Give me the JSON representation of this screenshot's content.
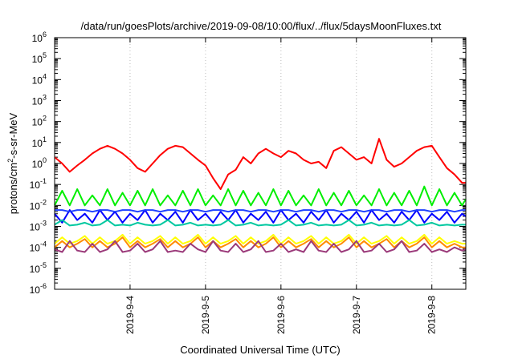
{
  "chart_data": {
    "type": "line",
    "title": "/data/run/goesPlots/archive/2019-09-08/10:00/flux/../flux/5daysMoonFluxes.txt",
    "xlabel": "Coordinated Universal Time (UTC)",
    "ylabel_base": "protons/cm",
    "ylabel_sup": "2",
    "ylabel_tail": "-s-sr-MeV",
    "yscale": "log",
    "ylim_exp": [
      -6,
      6
    ],
    "xlim_days": [
      3.0,
      8.45
    ],
    "ytick_exponents": [
      -6,
      -5,
      -4,
      -3,
      -2,
      -1,
      0,
      1,
      2,
      3,
      4,
      5,
      6
    ],
    "xticks": [
      {
        "label": "2019-9-4",
        "day": 4
      },
      {
        "label": "2019-9-5",
        "day": 5
      },
      {
        "label": "2019-9-6",
        "day": 6
      },
      {
        "label": "2019-9-7",
        "day": 7
      },
      {
        "label": "2019-9-8",
        "day": 8
      }
    ],
    "x_days": [
      3.0,
      3.1,
      3.2,
      3.3,
      3.4,
      3.5,
      3.6,
      3.7,
      3.8,
      3.9,
      4.0,
      4.1,
      4.2,
      4.3,
      4.4,
      4.5,
      4.6,
      4.7,
      4.8,
      4.9,
      5.0,
      5.1,
      5.2,
      5.3,
      5.4,
      5.5,
      5.6,
      5.7,
      5.8,
      5.9,
      6.0,
      6.1,
      6.2,
      6.3,
      6.4,
      6.5,
      6.6,
      6.7,
      6.8,
      6.9,
      7.0,
      7.1,
      7.2,
      7.3,
      7.4,
      7.5,
      7.6,
      7.7,
      7.8,
      7.9,
      8.0,
      8.1,
      8.2,
      8.3,
      8.4,
      8.45
    ],
    "series": [
      {
        "color": "#ff0000",
        "values": [
          2.0,
          1.0,
          0.4,
          0.8,
          1.5,
          3.0,
          5.0,
          7.0,
          5.0,
          3.0,
          1.5,
          0.6,
          0.4,
          1.0,
          2.5,
          5.0,
          7.0,
          6.0,
          3.0,
          1.5,
          0.8,
          0.2,
          0.06,
          0.3,
          0.5,
          2.0,
          1.0,
          3.0,
          5.0,
          3.0,
          2.0,
          4.0,
          3.0,
          1.5,
          1.0,
          1.2,
          0.6,
          4.0,
          6.0,
          3.0,
          1.5,
          2.0,
          1.0,
          15.0,
          1.5,
          0.7,
          1.0,
          2.0,
          4.0,
          6.0,
          7.0,
          2.0,
          0.6,
          0.3,
          0.12,
          0.12
        ]
      },
      {
        "color": "#00ee00",
        "values": [
          0.01,
          0.05,
          0.01,
          0.06,
          0.01,
          0.03,
          0.01,
          0.06,
          0.01,
          0.04,
          0.01,
          0.05,
          0.01,
          0.06,
          0.01,
          0.03,
          0.01,
          0.05,
          0.01,
          0.06,
          0.01,
          0.03,
          0.01,
          0.06,
          0.01,
          0.05,
          0.01,
          0.04,
          0.01,
          0.06,
          0.01,
          0.05,
          0.01,
          0.03,
          0.01,
          0.06,
          0.01,
          0.04,
          0.01,
          0.05,
          0.01,
          0.03,
          0.01,
          0.06,
          0.01,
          0.04,
          0.01,
          0.05,
          0.01,
          0.08,
          0.01,
          0.06,
          0.01,
          0.04,
          0.01,
          0.02
        ]
      },
      {
        "color": "#0000ff",
        "values": [
          0.004,
          0.0015,
          0.006,
          0.002,
          0.004,
          0.0015,
          0.006,
          0.002,
          0.005,
          0.0015,
          0.004,
          0.002,
          0.006,
          0.0015,
          0.004,
          0.002,
          0.005,
          0.0015,
          0.006,
          0.002,
          0.004,
          0.0015,
          0.005,
          0.002,
          0.006,
          0.0015,
          0.004,
          0.002,
          0.005,
          0.0015,
          0.006,
          0.002,
          0.004,
          0.0015,
          0.005,
          0.002,
          0.006,
          0.0015,
          0.004,
          0.002,
          0.005,
          0.0015,
          0.006,
          0.002,
          0.004,
          0.0015,
          0.005,
          0.002,
          0.006,
          0.0015,
          0.004,
          0.002,
          0.005,
          0.0015,
          0.004,
          0.003
        ]
      },
      {
        "color": "#1e40ff",
        "values": [
          0.006,
          0.006,
          0.005,
          0.006,
          0.006,
          0.005,
          0.006,
          0.006,
          0.005,
          0.006,
          0.006,
          0.005,
          0.006,
          0.006,
          0.005,
          0.006,
          0.006,
          0.005,
          0.006,
          0.006,
          0.005,
          0.006,
          0.006,
          0.005,
          0.006,
          0.006,
          0.005,
          0.006,
          0.006,
          0.005,
          0.006,
          0.006,
          0.005,
          0.006,
          0.006,
          0.005,
          0.006,
          0.006,
          0.005,
          0.006,
          0.006,
          0.005,
          0.006,
          0.006,
          0.005,
          0.006,
          0.006,
          0.005,
          0.006,
          0.006,
          0.005,
          0.006,
          0.006,
          0.005,
          0.006,
          0.006
        ]
      },
      {
        "color": "#00c8a0",
        "values": [
          0.0012,
          0.002,
          0.0011,
          0.0012,
          0.0015,
          0.0011,
          0.0012,
          0.002,
          0.0011,
          0.0012,
          0.0011,
          0.0015,
          0.0012,
          0.0011,
          0.0012,
          0.002,
          0.0011,
          0.0012,
          0.0015,
          0.0011,
          0.0012,
          0.0011,
          0.0012,
          0.002,
          0.0011,
          0.0012,
          0.0015,
          0.0011,
          0.0012,
          0.0011,
          0.0012,
          0.002,
          0.0011,
          0.0012,
          0.0015,
          0.0011,
          0.0012,
          0.0011,
          0.0012,
          0.002,
          0.0011,
          0.0012,
          0.0015,
          0.0011,
          0.0012,
          0.0011,
          0.0012,
          0.002,
          0.0011,
          0.0012,
          0.0015,
          0.0011,
          0.0012,
          0.0011,
          0.0012,
          0.0012
        ]
      },
      {
        "color": "#ffff00",
        "values": [
          0.00015,
          0.0003,
          0.00015,
          0.0002,
          0.00035,
          0.00015,
          0.0003,
          0.00015,
          0.0002,
          0.0004,
          0.00015,
          0.0003,
          0.00015,
          0.0002,
          0.00035,
          0.00015,
          0.0003,
          0.00015,
          0.0002,
          0.0004,
          0.00015,
          0.0003,
          0.00015,
          0.0002,
          0.00035,
          0.00015,
          0.0003,
          0.00015,
          0.0002,
          0.0004,
          0.00015,
          0.0003,
          0.00015,
          0.0002,
          0.00035,
          0.00015,
          0.0003,
          0.00015,
          0.0002,
          0.0004,
          0.00015,
          0.0003,
          0.00015,
          0.0002,
          0.00035,
          0.00015,
          0.0003,
          0.00015,
          0.0002,
          0.0004,
          0.00015,
          0.0003,
          0.00015,
          0.0002,
          0.00015,
          0.00015
        ]
      },
      {
        "color": "#ff8c00",
        "values": [
          0.0001,
          0.0002,
          0.0001,
          0.00015,
          0.00025,
          0.0001,
          0.0002,
          0.0001,
          0.00015,
          0.0003,
          0.0001,
          0.0002,
          0.0001,
          0.00015,
          0.00025,
          0.0001,
          0.0002,
          0.0001,
          0.00015,
          0.0003,
          0.0001,
          0.0002,
          0.0001,
          0.00015,
          0.00025,
          0.0001,
          0.0002,
          0.0001,
          0.00015,
          0.0003,
          0.0001,
          0.0002,
          0.0001,
          0.00015,
          0.00025,
          0.0001,
          0.0002,
          0.0001,
          0.00015,
          0.0003,
          0.0001,
          0.0002,
          0.0001,
          0.00015,
          0.00025,
          0.0001,
          0.0002,
          0.0001,
          0.00015,
          0.0003,
          0.0001,
          0.0002,
          0.0001,
          0.00015,
          0.0001,
          0.0001
        ]
      },
      {
        "color": "#9b3a7a",
        "values": [
          8e-05,
          6e-05,
          0.0002,
          7e-05,
          6e-05,
          0.00015,
          6e-05,
          8e-05,
          0.0002,
          6e-05,
          7e-05,
          0.00015,
          6e-05,
          8e-05,
          0.0002,
          6e-05,
          7e-05,
          6e-05,
          0.00015,
          8e-05,
          6e-05,
          0.0002,
          7e-05,
          6e-05,
          0.00015,
          6e-05,
          8e-05,
          0.0002,
          6e-05,
          7e-05,
          0.00015,
          6e-05,
          8e-05,
          6e-05,
          0.0002,
          7e-05,
          6e-05,
          0.00015,
          6e-05,
          8e-05,
          0.0002,
          6e-05,
          7e-05,
          0.00015,
          6e-05,
          8e-05,
          0.0002,
          6e-05,
          7e-05,
          0.00015,
          6e-05,
          8e-05,
          6e-05,
          0.0001,
          7e-05,
          8e-05
        ]
      }
    ]
  }
}
